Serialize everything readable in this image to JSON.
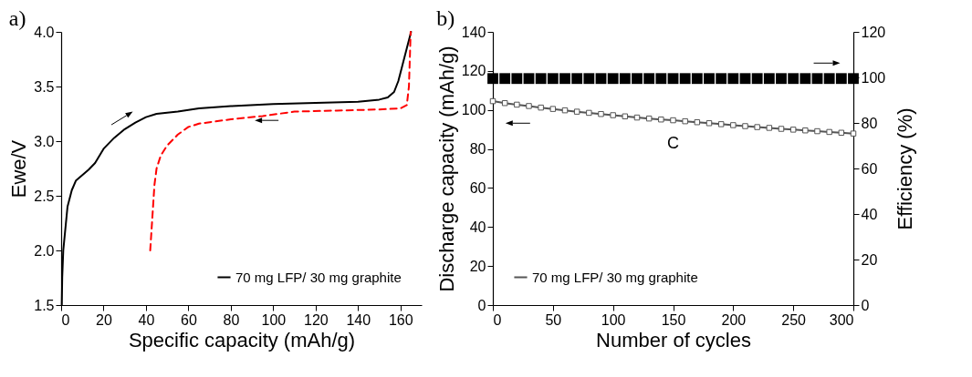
{
  "chart_data": [
    {
      "type": "line",
      "title": "a)",
      "xlabel": "Specific capacity (mAh/g)",
      "ylabel": "Ewe/V",
      "xlim": [
        0,
        170
      ],
      "xticks": [
        0,
        20,
        40,
        60,
        80,
        100,
        120,
        140,
        160
      ],
      "ylim": [
        1.5,
        4.0
      ],
      "yticks": [
        1.5,
        {
          "value": 2,
          "label": "2.0"
        },
        2.5,
        {
          "value": 3,
          "label": "3.0"
        },
        3.5,
        {
          "value": 4,
          "label": "4.0"
        }
      ],
      "grid": false,
      "legend": "bottom right",
      "series": [
        {
          "name": "70 mg LFP/ 30 mg graphite",
          "color": "#000000",
          "line_style": "solid",
          "x": [
            0.3,
            0.5,
            1,
            2,
            3,
            5,
            7,
            10,
            13,
            16,
            20,
            25,
            30,
            35,
            40,
            45,
            55,
            65,
            80,
            100,
            120,
            140,
            150,
            154,
            157,
            159,
            161,
            163,
            165
          ],
          "values": [
            1.5,
            1.75,
            2.0,
            2.2,
            2.4,
            2.55,
            2.64,
            2.69,
            2.74,
            2.8,
            2.93,
            3.03,
            3.11,
            3.17,
            3.22,
            3.25,
            3.27,
            3.3,
            3.32,
            3.34,
            3.35,
            3.36,
            3.38,
            3.4,
            3.45,
            3.55,
            3.7,
            3.85,
            4.0
          ]
        },
        {
          "color": "#ff0000",
          "line_style": "dashed",
          "x": [
            42,
            43,
            44,
            45,
            47,
            50,
            55,
            60,
            65,
            80,
            95,
            110,
            130,
            150,
            160,
            163,
            164,
            164.5,
            164.8
          ],
          "values": [
            2.0,
            2.3,
            2.6,
            2.75,
            2.87,
            2.96,
            3.06,
            3.13,
            3.16,
            3.2,
            3.23,
            3.27,
            3.28,
            3.29,
            3.3,
            3.33,
            3.5,
            3.8,
            4.0
          ]
        }
      ]
    },
    {
      "type": "line",
      "title": "b)",
      "xlabel": "Number of cycles",
      "ylabel": "Discharge capacity (mAh/g)",
      "y2label": "Efficiency (%)",
      "xlim": [
        0,
        300
      ],
      "xticks": [
        0,
        50,
        100,
        150,
        200,
        250,
        300
      ],
      "ylim": [
        0,
        140
      ],
      "yticks": [
        0,
        20,
        40,
        60,
        80,
        100,
        120,
        140
      ],
      "y2lim": [
        0,
        120
      ],
      "y2ticks": [
        0,
        20,
        40,
        60,
        80,
        100,
        120
      ],
      "grid": false,
      "legend": "bottom left",
      "annotations": [
        "C"
      ],
      "series": [
        {
          "name": "70 mg LFP/ 30 mg graphite",
          "color": "#555555",
          "marker": "square",
          "x": [
            0,
            10,
            20,
            30,
            40,
            50,
            60,
            70,
            80,
            90,
            100,
            110,
            120,
            130,
            140,
            150,
            160,
            170,
            180,
            190,
            200,
            210,
            220,
            230,
            240,
            250,
            260,
            270,
            280,
            290,
            300
          ],
          "values": [
            104.5,
            103.5,
            102.7,
            102,
            101.2,
            100.5,
            99.8,
            99.1,
            98.5,
            97.9,
            97.3,
            96.7,
            96.1,
            95.6,
            95.1,
            94.7,
            94.2,
            93.7,
            93.2,
            92.7,
            92.2,
            91.7,
            91.2,
            90.8,
            90.3,
            89.9,
            89.5,
            89.1,
            88.7,
            88.3,
            87.9
          ]
        },
        {
          "type": "scatter",
          "color": "#000000",
          "marker": "square",
          "axis": "y2",
          "x": [
            0,
            10,
            20,
            30,
            40,
            50,
            60,
            70,
            80,
            90,
            100,
            110,
            120,
            130,
            140,
            150,
            160,
            170,
            180,
            190,
            200,
            210,
            220,
            230,
            240,
            250,
            260,
            270,
            280,
            290,
            300
          ],
          "values": [
            99.5,
            99.5,
            99.5,
            99.5,
            99.5,
            99.5,
            99.5,
            99.5,
            99.5,
            99.5,
            99.5,
            99.5,
            99.5,
            99.5,
            99.5,
            99.5,
            99.5,
            99.5,
            99.5,
            99.5,
            99.5,
            99.5,
            99.5,
            99.5,
            99.5,
            99.5,
            99.5,
            99.5,
            99.5,
            99.5,
            99.5
          ]
        }
      ]
    }
  ]
}
